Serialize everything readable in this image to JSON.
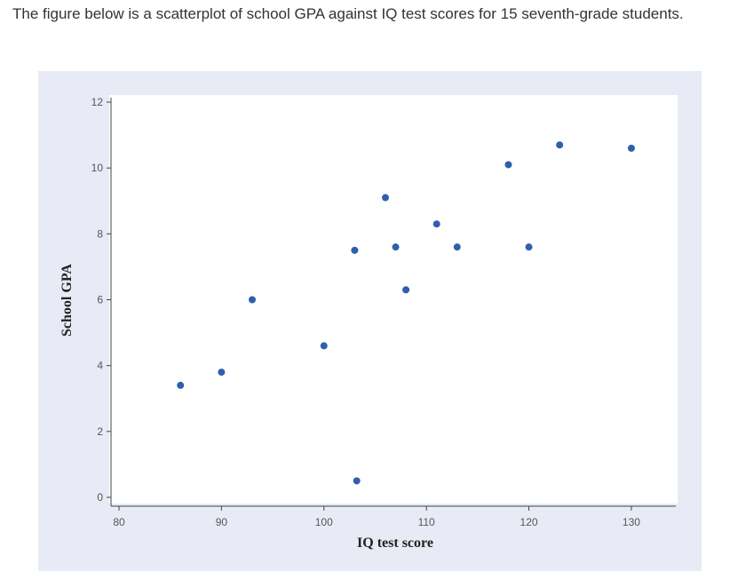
{
  "intro_text": "The figure below is a scatterplot of school GPA against IQ test scores for 15 seventh-grade students.",
  "colors": {
    "point": "#2f5fad",
    "plot_bg": "#ffffff",
    "panel_bg": "#e8ebf5",
    "axis": "#444444"
  },
  "chart_data": {
    "type": "scatter",
    "xlabel": "IQ test score",
    "ylabel": "School GPA",
    "xlim": [
      80,
      132
    ],
    "ylim": [
      0,
      12
    ],
    "xticks": [
      80,
      90,
      100,
      110,
      120,
      130
    ],
    "yticks": [
      0,
      2,
      4,
      6,
      8,
      10,
      12
    ],
    "grid": false,
    "points": [
      {
        "x": 86,
        "y": 3.4
      },
      {
        "x": 90,
        "y": 3.8
      },
      {
        "x": 93,
        "y": 6.0
      },
      {
        "x": 100,
        "y": 4.6
      },
      {
        "x": 103,
        "y": 7.5
      },
      {
        "x": 103.2,
        "y": 0.5
      },
      {
        "x": 106,
        "y": 9.1
      },
      {
        "x": 107,
        "y": 7.6
      },
      {
        "x": 108,
        "y": 6.3
      },
      {
        "x": 111,
        "y": 8.3
      },
      {
        "x": 113,
        "y": 7.6
      },
      {
        "x": 118,
        "y": 10.1
      },
      {
        "x": 120,
        "y": 7.6
      },
      {
        "x": 123,
        "y": 10.7
      },
      {
        "x": 130,
        "y": 10.6
      }
    ]
  }
}
